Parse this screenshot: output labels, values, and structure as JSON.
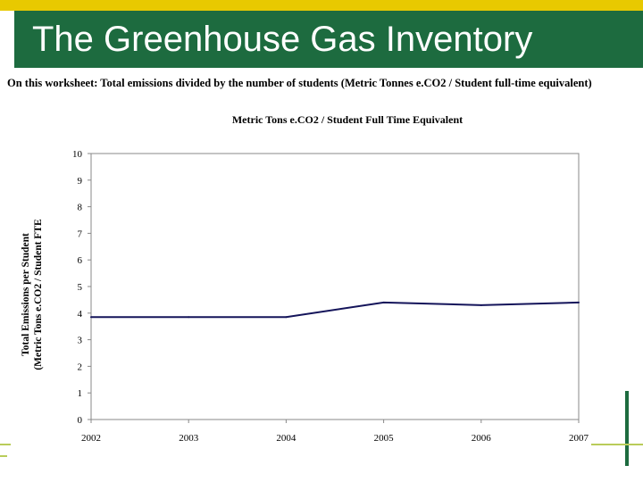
{
  "header": {
    "title": "The Greenhouse Gas Inventory"
  },
  "worksheet": {
    "subtitle": "On this worksheet:  Total emissions divided by the number of students (Metric Tonnes e.CO2 / Student full-time equivalent)"
  },
  "colors": {
    "title_bar": "#1d6b3f",
    "top_band": "#e8c900",
    "line": "#14145a",
    "axis": "#888888"
  },
  "chart_data": {
    "type": "line",
    "title": "Metric Tons e.CO2 / Student Full Time Equivalent",
    "xlabel": "",
    "ylabel": [
      "Total Emissions per Student",
      "(Metric Tons e.CO2 / Student FTE"
    ],
    "categories": [
      "2002",
      "2003",
      "2004",
      "2005",
      "2006",
      "2007"
    ],
    "series": [
      {
        "name": "Emissions per Student",
        "values": [
          3.85,
          3.85,
          3.85,
          4.4,
          4.3,
          4.4
        ]
      }
    ],
    "ylim": [
      0,
      10
    ],
    "yticks": [
      "0",
      "1",
      "2",
      "3",
      "4",
      "5",
      "6",
      "7",
      "8",
      "9",
      "10"
    ],
    "grid": false,
    "legend": "none"
  }
}
